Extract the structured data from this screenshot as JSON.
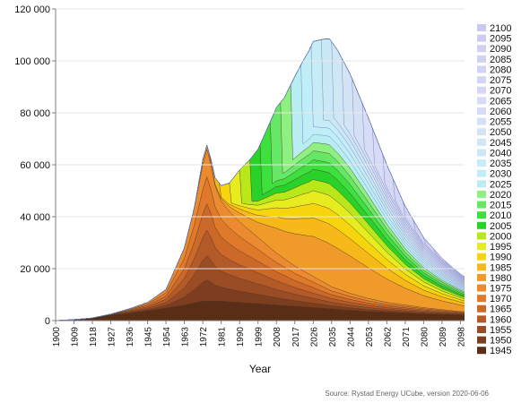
{
  "chart_data": {
    "type": "area",
    "stacked": true,
    "title": "",
    "xlabel": "Year",
    "ylabel": "",
    "xlim": [
      1900,
      2100
    ],
    "ylim": [
      0,
      120000
    ],
    "yticks": [
      "0",
      "20 000",
      "40 000",
      "60 000",
      "80 000",
      "100 000",
      "120 000"
    ],
    "yticks_values": [
      0,
      20000,
      40000,
      60000,
      80000,
      100000,
      120000
    ],
    "xticks": [
      1900,
      1909,
      1918,
      1927,
      1936,
      1945,
      1954,
      1963,
      1972,
      1981,
      1990,
      1999,
      2008,
      2017,
      2026,
      2035,
      2044,
      2053,
      2062,
      2071,
      2080,
      2089,
      2098
    ],
    "legend_placement": "right",
    "legend": [
      "2100",
      "2095",
      "2090",
      "2085",
      "2080",
      "2075",
      "2070",
      "2065",
      "2060",
      "2055",
      "2050",
      "2045",
      "2040",
      "2035",
      "2030",
      "2025",
      "2020",
      "2015",
      "2010",
      "2005",
      "2000",
      "1995",
      "1990",
      "1985",
      "1980",
      "1975",
      "1970",
      "1965",
      "1960",
      "1955",
      "1950",
      "1945"
    ],
    "legend_colors": [
      "#c8c8f0",
      "#ccccf2",
      "#d0d0f2",
      "#cfd2f3",
      "#d2d4f5",
      "#d4d6f5",
      "#d6d8f6",
      "#d8dbf7",
      "#d8dcf6",
      "#d6e0f5",
      "#d4e4f4",
      "#cfe6f4",
      "#cbe9f5",
      "#c6ecf7",
      "#c0eef6",
      "#b8eef2",
      "#8ef080",
      "#66e866",
      "#3ee03e",
      "#28d228",
      "#b8e81a",
      "#e6ec20",
      "#f6d40e",
      "#f7b81a",
      "#f09a2a",
      "#ec8a30",
      "#e07a2a",
      "#cc6828",
      "#b45a28",
      "#9a4c24",
      "#7c3e1e",
      "#5a2e16"
    ],
    "source": "Source: Rystad Energy UCube, version 2020-06-06"
  }
}
